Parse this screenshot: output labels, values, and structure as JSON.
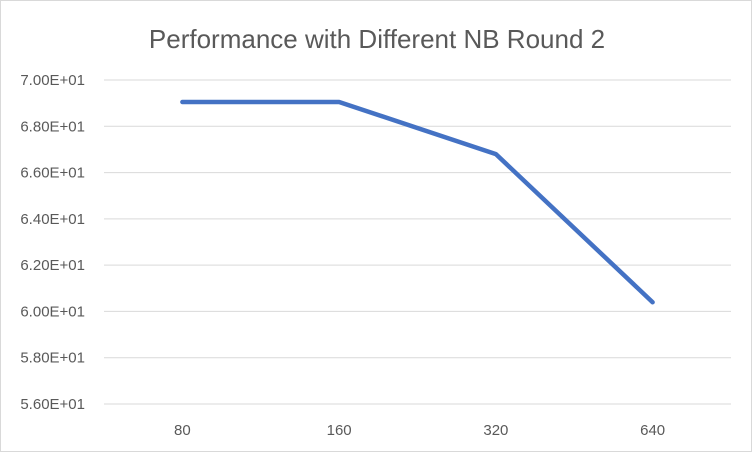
{
  "chart_data": {
    "type": "line",
    "title": "Performance with Different NB Round 2",
    "xlabel": "",
    "ylabel": "",
    "categories": [
      "80",
      "160",
      "320",
      "640"
    ],
    "series": [
      {
        "values": [
          69.05,
          69.05,
          66.8,
          60.4
        ]
      }
    ],
    "ylim": [
      56,
      70
    ],
    "y_ticks": [
      70,
      68,
      66,
      64,
      62,
      60,
      58,
      56
    ],
    "y_tick_labels": [
      "7.00E+01",
      "6.80E+01",
      "6.60E+01",
      "6.40E+01",
      "6.20E+01",
      "6.00E+01",
      "5.80E+01",
      "5.60E+01"
    ],
    "grid": true,
    "legend": "none"
  },
  "colors": {
    "series": "#4472c4",
    "grid": "#d9d9d9",
    "text": "#595959"
  }
}
